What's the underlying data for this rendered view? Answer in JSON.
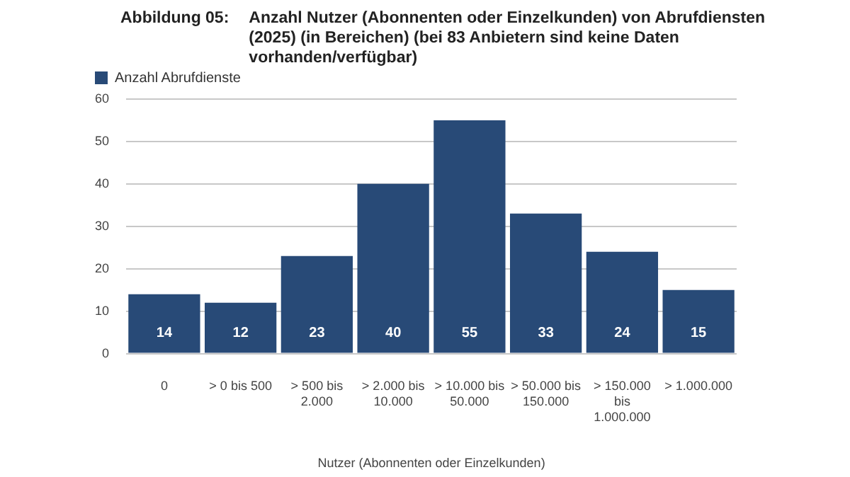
{
  "chart_data": {
    "type": "bar",
    "title": "Abbildung 05:",
    "subtitle": "Anzahl Nutzer (Abonnenten oder Einzelkunden) von Abrufdiensten (2025) (in Bereichen) (bei 83 Anbietern sind keine Daten vorhanden/verfügbar)",
    "xlabel": "Nutzer (Abonnenten oder Einzelkunden)",
    "categories": [
      "0",
      "> 0 bis 500",
      "> 500 bis 2.000",
      "> 2.000 bis 10.000",
      "> 10.000 bis 50.000",
      "> 50.000 bis 150.000",
      "> 150.000 bis 1.000.000",
      "> 1.000.000"
    ],
    "series": [
      {
        "name": "Anzahl Abrufdienste",
        "color": "#284a77",
        "values": [
          14,
          12,
          23,
          40,
          55,
          33,
          24,
          15
        ]
      }
    ],
    "ylim": [
      0,
      60
    ],
    "yticks": [
      0,
      10,
      20,
      30,
      40,
      50,
      60
    ],
    "grid": "y",
    "legend": "top left",
    "data_labels": true
  }
}
